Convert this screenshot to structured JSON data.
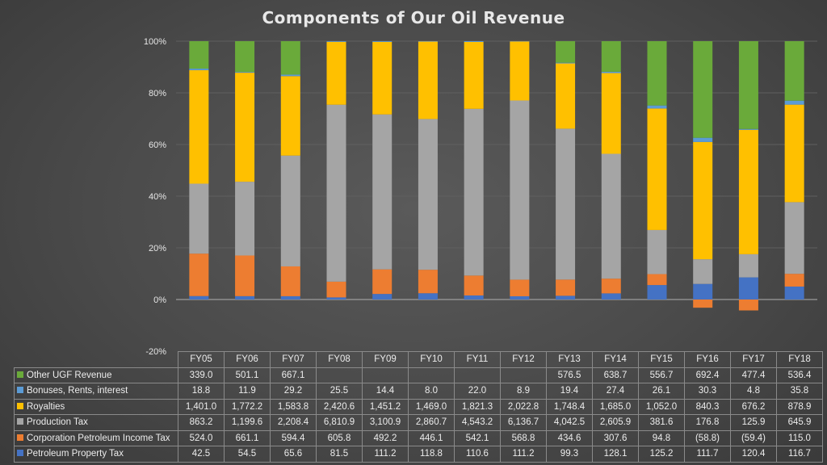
{
  "chart_data": {
    "type": "bar",
    "stacked": "percent",
    "title": "Components of Our Oil Revenue",
    "ylim": [
      -20,
      100
    ],
    "y_ticks": [
      "100%",
      "80%",
      "60%",
      "40%",
      "20%",
      "0%",
      "-20%"
    ],
    "categories": [
      "FY05",
      "FY06",
      "FY07",
      "FY08",
      "FY09",
      "FY10",
      "FY11",
      "FY12",
      "FY13",
      "FY14",
      "FY15",
      "FY16",
      "FY17",
      "FY18"
    ],
    "series": [
      {
        "name": "Other UGF Revenue",
        "color": "#6aaa3a",
        "values": [
          339.0,
          501.1,
          667.1,
          null,
          null,
          null,
          null,
          null,
          576.5,
          638.7,
          556.7,
          692.4,
          477.4,
          536.4
        ],
        "labels": [
          "339.0",
          "501.1",
          "667.1",
          "",
          "",
          "",
          "",
          "",
          "576.5",
          "638.7",
          "556.7",
          "692.4",
          "477.4",
          "536.4"
        ]
      },
      {
        "name": "Bonuses, Rents, interest",
        "color": "#5b9bd5",
        "values": [
          18.8,
          11.9,
          29.2,
          25.5,
          14.4,
          8.0,
          22.0,
          8.9,
          19.4,
          27.4,
          26.1,
          30.3,
          4.8,
          35.8
        ],
        "labels": [
          "18.8",
          "11.9",
          "29.2",
          "25.5",
          "14.4",
          "8.0",
          "22.0",
          "8.9",
          "19.4",
          "27.4",
          "26.1",
          "30.3",
          "4.8",
          "35.8"
        ]
      },
      {
        "name": "Royalties",
        "color": "#ffc000",
        "values": [
          1401.0,
          1772.2,
          1583.8,
          2420.6,
          1451.2,
          1469.0,
          1821.3,
          2022.8,
          1748.4,
          1685.0,
          1052.0,
          840.3,
          676.2,
          878.9
        ],
        "labels": [
          "1,401.0",
          "1,772.2",
          "1,583.8",
          "2,420.6",
          "1,451.2",
          "1,469.0",
          "1,821.3",
          "2,022.8",
          "1,748.4",
          "1,685.0",
          "1,052.0",
          "840.3",
          "676.2",
          "878.9"
        ]
      },
      {
        "name": "Production Tax",
        "color": "#a5a5a5",
        "values": [
          863.2,
          1199.6,
          2208.4,
          6810.9,
          3100.9,
          2860.7,
          4543.2,
          6136.7,
          4042.5,
          2605.9,
          381.6,
          176.8,
          125.9,
          645.9
        ],
        "labels": [
          "863.2",
          "1,199.6",
          "2,208.4",
          "6,810.9",
          "3,100.9",
          "2,860.7",
          "4,543.2",
          "6,136.7",
          "4,042.5",
          "2,605.9",
          "381.6",
          "176.8",
          "125.9",
          "645.9"
        ]
      },
      {
        "name": "Corporation Petroleum Income Tax",
        "color": "#ed7d31",
        "values": [
          524.0,
          661.1,
          594.4,
          605.8,
          492.2,
          446.1,
          542.1,
          568.8,
          434.6,
          307.6,
          94.8,
          -58.8,
          -59.4,
          115.0
        ],
        "labels": [
          "524.0",
          "661.1",
          "594.4",
          "605.8",
          "492.2",
          "446.1",
          "542.1",
          "568.8",
          "434.6",
          "307.6",
          "94.8",
          "(58.8)",
          "(59.4)",
          "115.0"
        ]
      },
      {
        "name": "Petroleum Property Tax",
        "color": "#4472c4",
        "values": [
          42.5,
          54.5,
          65.6,
          81.5,
          111.2,
          118.8,
          110.6,
          111.2,
          99.3,
          128.1,
          125.2,
          111.7,
          120.4,
          116.7
        ],
        "labels": [
          "42.5",
          "54.5",
          "65.6",
          "81.5",
          "111.2",
          "118.8",
          "110.6",
          "111.2",
          "99.3",
          "128.1",
          "125.2",
          "111.7",
          "120.4",
          "116.7"
        ]
      }
    ],
    "grid": true,
    "legend": "data table below chart"
  }
}
